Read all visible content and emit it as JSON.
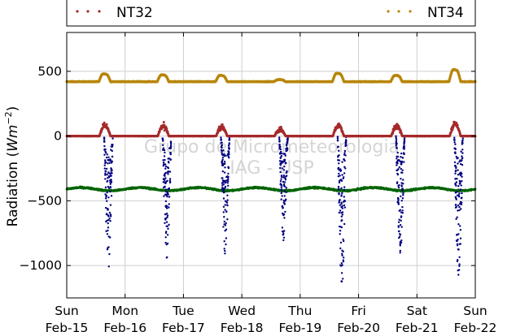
{
  "chart_data": {
    "type": "scatter",
    "ylabel": "Radiation (Wm⁻²)",
    "ylabel_main": "Radiation (",
    "ylabel_unit": "Wm",
    "ylabel_exp": "−2",
    "ylabel_close": ")",
    "ylim": [
      -1250,
      800
    ],
    "y_ticks": [
      500,
      0,
      -500,
      -1000
    ],
    "y_tick_labels": [
      "500",
      "0",
      "−500",
      "−1000"
    ],
    "x_tick_labels": [
      [
        "Sun",
        "Feb-15"
      ],
      [
        "Mon",
        "Feb-16"
      ],
      [
        "Tue",
        "Feb-17"
      ],
      [
        "Wed",
        "Feb-18"
      ],
      [
        "Thu",
        "Feb-19"
      ],
      [
        "Fri",
        "Feb-20"
      ],
      [
        "Sat",
        "Feb-21"
      ],
      [
        "Sun",
        "Feb-22"
      ]
    ],
    "x_range_days": [
      0,
      7
    ],
    "grid": true,
    "legend_placement": "top, above plot",
    "watermark": [
      "Grupo de Micrometeorologia",
      "IAG - USP"
    ],
    "series": [
      {
        "name": "NT32",
        "color": "#a52a2a",
        "night_value": 0,
        "daily_peak": [
          100,
          95,
          85,
          60,
          100,
          90,
          110
        ],
        "day_offset": [
          0.6,
          0.63
        ],
        "scatter": 28
      },
      {
        "name": "NT34",
        "color": "#b8860b",
        "night_value": 420,
        "daily_peak": [
          495,
          485,
          480,
          440,
          500,
          480,
          535
        ],
        "day_offset": [
          0.55,
          0.75
        ]
      },
      {
        "name": "",
        "color": "#000080",
        "night_value": 0,
        "daily_min": [
          -1030,
          -960,
          -920,
          -820,
          -1210,
          -930,
          -1100
        ],
        "day_offset": [
          0.64,
          0.79
        ]
      },
      {
        "name": "",
        "color": "#006400",
        "mean": -410,
        "range": [
          -440,
          -375
        ]
      }
    ]
  }
}
